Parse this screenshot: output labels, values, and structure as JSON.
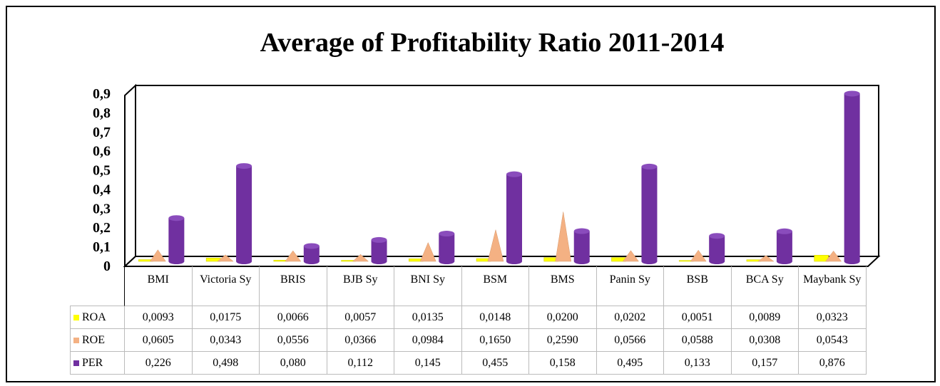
{
  "chart_data": {
    "type": "bar",
    "title": "Average of Profitability Ratio 2011-2014",
    "categories": [
      "BMI",
      "Victoria Sy",
      "BRIS",
      "BJB Sy",
      "BNI Sy",
      "BSM",
      "BMS",
      "Panin Sy",
      "BSB",
      "BCA Sy",
      "Maybank Sy"
    ],
    "series": [
      {
        "name": "ROA",
        "color": "#ffff00",
        "values": [
          0.0093,
          0.0175,
          0.0066,
          0.0057,
          0.0135,
          0.0148,
          0.02,
          0.0202,
          0.0051,
          0.0089,
          0.0323
        ],
        "value_labels": [
          "0,0093",
          "0,0175",
          "0,0066",
          "0,0057",
          "0,0135",
          "0,0148",
          "0,0200",
          "0,0202",
          "0,0051",
          "0,0089",
          "0,0323"
        ]
      },
      {
        "name": "ROE",
        "color": "#f4b183",
        "values": [
          0.0605,
          0.0343,
          0.0556,
          0.0366,
          0.0984,
          0.165,
          0.259,
          0.0566,
          0.0588,
          0.0308,
          0.0543
        ],
        "value_labels": [
          "0,0605",
          "0,0343",
          "0,0556",
          "0,0366",
          "0,0984",
          "0,1650",
          "0,2590",
          "0,0566",
          "0,0588",
          "0,0308",
          "0,0543"
        ]
      },
      {
        "name": "PER",
        "color": "#7030a0",
        "values": [
          0.226,
          0.498,
          0.08,
          0.112,
          0.145,
          0.455,
          0.158,
          0.495,
          0.133,
          0.157,
          0.876
        ],
        "value_labels": [
          "0,226",
          "0,498",
          "0,080",
          "0,112",
          "0,145",
          "0,455",
          "0,158",
          "0,495",
          "0,133",
          "0,157",
          "0,876"
        ]
      }
    ],
    "ylim": [
      0,
      0.9
    ],
    "yticks": [
      0,
      {
        "value": 0.1,
        "label": "0,1"
      },
      {
        "value": 0.2,
        "label": "0,2"
      },
      {
        "value": 0.3,
        "label": "0,3"
      },
      {
        "value": 0.4,
        "label": "0,4"
      },
      {
        "value": 0.5,
        "label": "0,5"
      },
      {
        "value": 0.6,
        "label": "0,6"
      },
      {
        "value": 0.7,
        "label": "0,7"
      },
      {
        "value": 0.8,
        "label": "0,8"
      },
      {
        "value": 0.9,
        "label": "0,9"
      }
    ]
  }
}
